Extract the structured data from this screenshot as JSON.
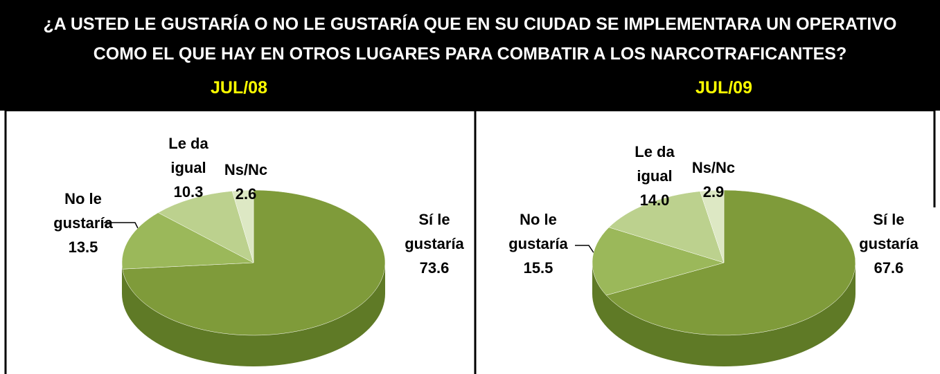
{
  "title": "¿A USTED LE GUSTARÍA O NO LE GUSTARÍA QUE EN SU CIUDAD SE IMPLEMENTARA UN OPERATIVO COMO EL QUE HAY EN OTROS LUGARES PARA COMBATIR A LOS NARCOTRAFICANTES?",
  "chart_data": [
    {
      "type": "pie",
      "title": "JUL/08",
      "categories": [
        "Sí le gustaría",
        "No le gustaría",
        "Le da igual",
        "Ns/Nc"
      ],
      "values": [
        73.6,
        13.5,
        10.3,
        2.6
      ],
      "value_labels": [
        "73.6",
        "13.5",
        "10.3",
        "2.6"
      ],
      "colors": [
        "#7f9b3a",
        "#9bb85a",
        "#bcd18e",
        "#dde8c4"
      ]
    },
    {
      "type": "pie",
      "title": "JUL/09",
      "categories": [
        "Sí le gustaría",
        "No le gustaría",
        "Le da igual",
        "Ns/Nc"
      ],
      "values": [
        67.6,
        15.5,
        14.0,
        2.9
      ],
      "value_labels": [
        "67.6",
        "15.5",
        "14.0",
        "2.9"
      ],
      "colors": [
        "#7f9b3a",
        "#9bb85a",
        "#bcd18e",
        "#dde8c4"
      ]
    }
  ]
}
